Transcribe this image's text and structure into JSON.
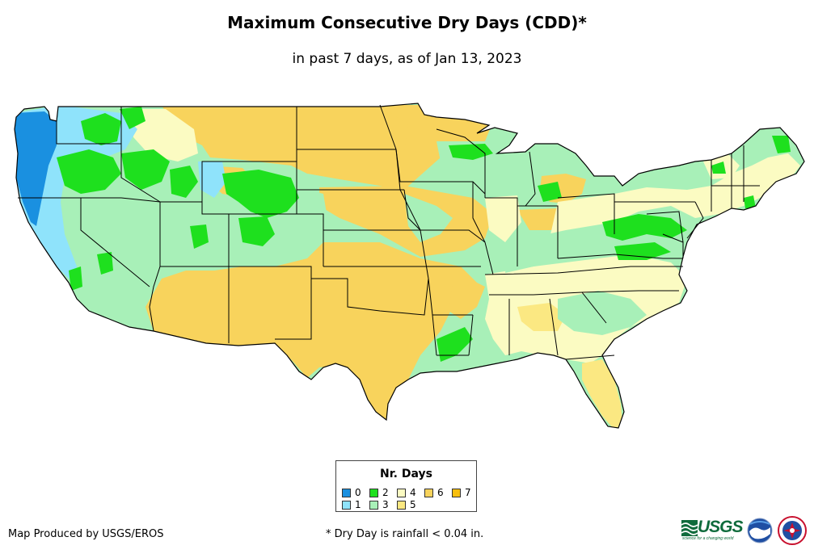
{
  "title": "Maximum Consecutive Dry Days (CDD)*",
  "subtitle": "in past 7 days, as of Jan 13, 2023",
  "legend": {
    "title": "Nr. Days",
    "items": [
      {
        "label": "0",
        "color": "#1a90e0"
      },
      {
        "label": "1",
        "color": "#8fe3fb"
      },
      {
        "label": "2",
        "color": "#1ee01e"
      },
      {
        "label": "3",
        "color": "#a8f0b8"
      },
      {
        "label": "4",
        "color": "#fbfbc2"
      },
      {
        "label": "5",
        "color": "#fbe882"
      },
      {
        "label": "6",
        "color": "#f8d35c"
      },
      {
        "label": "7",
        "color": "#f8bf0e"
      }
    ]
  },
  "credit": "Map Produced by USGS/EROS",
  "footnote": "* Dry Day is rainfall < 0.04 in.",
  "logos": {
    "usgs_text": "USGS",
    "usgs_tagline": "science for a changing world",
    "noaa_icon": "noaa-logo-icon",
    "nws_icon": "nws-logo-icon"
  },
  "colors": {
    "border": "#000000",
    "usgs_green": "#0f6b3c",
    "noaa_blue": "#1f4fa3"
  }
}
